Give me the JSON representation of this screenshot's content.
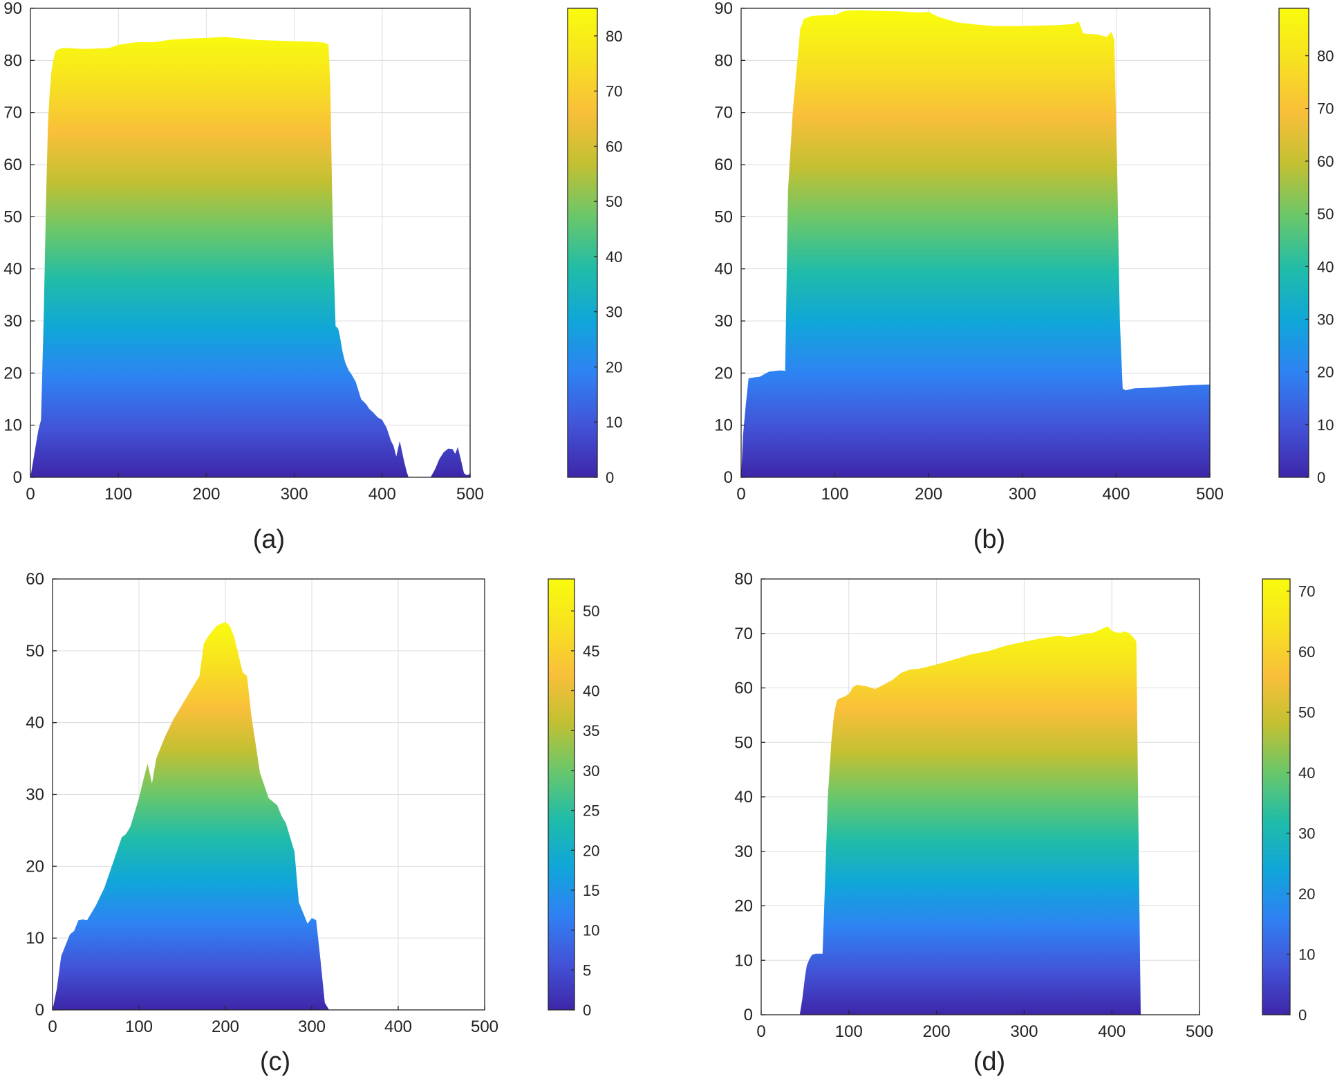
{
  "colors": {
    "parula_stops": [
      "#3e26a8",
      "#4254d8",
      "#2f82f3",
      "#10a6d9",
      "#20bca8",
      "#6ac76a",
      "#c2c032",
      "#f9bf3a",
      "#f7e121",
      "#f9fb0e"
    ],
    "grid": "#dcdcdc",
    "axis": "#262626"
  },
  "chart_data": [
    {
      "type": "area",
      "caption": "(a)",
      "fill": "vertical colormap gradient",
      "xlim": [
        0,
        500
      ],
      "ylim": [
        0,
        90
      ],
      "xticks": [
        0,
        100,
        200,
        300,
        400,
        500
      ],
      "yticks": [
        0,
        10,
        20,
        30,
        40,
        50,
        60,
        70,
        80,
        90
      ],
      "grid": true,
      "colorbar": {
        "range": [
          0,
          85
        ],
        "ticks": [
          0,
          10,
          20,
          30,
          40,
          50,
          60,
          70,
          80
        ]
      },
      "x": [
        0,
        3,
        6,
        9,
        12,
        15,
        18,
        20,
        22,
        24,
        26,
        28,
        30,
        35,
        40,
        60,
        80,
        90,
        100,
        120,
        140,
        160,
        180,
        200,
        220,
        240,
        260,
        280,
        300,
        320,
        335,
        339,
        341,
        343,
        345,
        347,
        350,
        352,
        355,
        358,
        362,
        366,
        370,
        376,
        382,
        385,
        390,
        395,
        400,
        405,
        410,
        413,
        416,
        420,
        425,
        428,
        430,
        433,
        436,
        440,
        455,
        460,
        465,
        470,
        475,
        480,
        483,
        486,
        490,
        493,
        496,
        500
      ],
      "y": [
        0,
        3,
        6,
        9,
        11,
        30,
        55,
        68,
        74,
        78,
        80,
        81.5,
        82,
        82.3,
        82.4,
        82.2,
        82.3,
        82.4,
        83,
        83.5,
        83.5,
        84,
        84.2,
        84.3,
        84.5,
        84.2,
        83.9,
        83.8,
        83.7,
        83.6,
        83.4,
        83.0,
        75,
        55,
        40,
        29,
        28.5,
        27,
        24,
        22,
        20.5,
        19.5,
        18.3,
        15,
        14,
        13.2,
        12.4,
        11.5,
        11,
        9.5,
        7,
        6,
        4,
        7,
        3,
        1,
        0,
        0,
        0,
        0,
        0,
        1.5,
        3.5,
        4.8,
        5.5,
        5.4,
        4.5,
        5.8,
        3,
        0.8,
        0.4,
        0.6
      ]
    },
    {
      "type": "area",
      "caption": "(b)",
      "fill": "vertical colormap gradient",
      "xlim": [
        0,
        500
      ],
      "ylim": [
        0,
        90
      ],
      "xticks": [
        0,
        100,
        200,
        300,
        400,
        500
      ],
      "yticks": [
        0,
        10,
        20,
        30,
        40,
        50,
        60,
        70,
        80,
        90
      ],
      "grid": true,
      "colorbar": {
        "range": [
          0,
          89
        ],
        "ticks": [
          0,
          10,
          20,
          30,
          40,
          50,
          60,
          70,
          80
        ]
      },
      "x": [
        0,
        2,
        5,
        8,
        15,
        20,
        25,
        30,
        40,
        44,
        47,
        50,
        55,
        60,
        63,
        67,
        70,
        75,
        80,
        100,
        110,
        120,
        130,
        150,
        170,
        190,
        200,
        210,
        230,
        250,
        270,
        300,
        320,
        340,
        355,
        360,
        365,
        370,
        380,
        390,
        395,
        398,
        401,
        404,
        407,
        410,
        420,
        440,
        460,
        480,
        500
      ],
      "y": [
        0,
        8,
        14,
        19,
        19.2,
        19.3,
        19.8,
        20.3,
        20.5,
        20.5,
        20.4,
        55,
        70,
        80,
        86,
        88,
        88.2,
        88.5,
        88.6,
        88.7,
        89.5,
        89.6,
        89.6,
        89.5,
        89.4,
        89.2,
        89.3,
        88.4,
        87.3,
        86.9,
        86.6,
        86.6,
        86.7,
        86.8,
        87.0,
        87.5,
        85.2,
        85.1,
        85.0,
        84.5,
        85.5,
        84.0,
        60,
        30,
        17,
        16.7,
        17.1,
        17.2,
        17.5,
        17.7,
        17.8
      ]
    },
    {
      "type": "area",
      "caption": "(c)",
      "fill": "vertical colormap gradient",
      "xlim": [
        0,
        500
      ],
      "ylim": [
        0,
        60
      ],
      "xticks": [
        0,
        100,
        200,
        300,
        400,
        500
      ],
      "yticks": [
        0,
        10,
        20,
        30,
        40,
        50,
        60
      ],
      "grid": true,
      "colorbar": {
        "range": [
          0,
          54
        ],
        "ticks": [
          0,
          5,
          10,
          15,
          20,
          25,
          30,
          35,
          40,
          45,
          50
        ]
      },
      "x": [
        0,
        5,
        10,
        15,
        20,
        25,
        30,
        35,
        40,
        50,
        60,
        70,
        80,
        85,
        90,
        95,
        100,
        105,
        110,
        115,
        120,
        130,
        140,
        150,
        160,
        170,
        175,
        180,
        190,
        200,
        205,
        210,
        220,
        225,
        230,
        235,
        240,
        250,
        260,
        265,
        270,
        280,
        285,
        290,
        295,
        300,
        305,
        310,
        315,
        320,
        330,
        500
      ],
      "y": [
        0,
        3,
        7.5,
        9,
        10.5,
        11,
        12.5,
        12.6,
        12.5,
        14.5,
        17,
        20.5,
        24,
        24.5,
        25.5,
        27.5,
        29.5,
        32,
        34.3,
        31.5,
        35,
        38,
        40.5,
        42.5,
        44.5,
        46.5,
        51,
        52,
        53.5,
        54,
        53.5,
        52,
        47,
        46.5,
        41,
        37,
        33,
        29.5,
        28.5,
        27,
        26,
        22,
        15,
        13.5,
        12,
        12.8,
        12.5,
        7,
        1,
        0,
        0,
        0
      ]
    },
    {
      "type": "area",
      "caption": "(d)",
      "fill": "vertical colormap gradient",
      "xlim": [
        0,
        500
      ],
      "ylim": [
        0,
        80
      ],
      "xticks": [
        0,
        100,
        200,
        300,
        400,
        500
      ],
      "yticks": [
        0,
        10,
        20,
        30,
        40,
        50,
        60,
        70,
        80
      ],
      "grid": true,
      "colorbar": {
        "range": [
          0,
          72
        ],
        "ticks": [
          0,
          10,
          20,
          30,
          40,
          50,
          60,
          70
        ]
      },
      "x": [
        0,
        44,
        47,
        50,
        52,
        55,
        58,
        62,
        70,
        73,
        76,
        80,
        83,
        86,
        88,
        90,
        95,
        100,
        105,
        110,
        115,
        120,
        130,
        140,
        150,
        160,
        170,
        180,
        200,
        220,
        240,
        260,
        280,
        300,
        320,
        340,
        350,
        360,
        380,
        395,
        400,
        405,
        410,
        415,
        420,
        425,
        428,
        430,
        433,
        500
      ],
      "y": [
        0,
        0,
        3,
        7,
        9,
        10.2,
        11,
        11.2,
        11.2,
        25,
        40,
        50,
        55,
        57.5,
        58,
        58.1,
        58.4,
        58.9,
        60.2,
        60.6,
        60.4,
        60.3,
        59.8,
        60.6,
        61.5,
        62.8,
        63.4,
        63.5,
        64.3,
        65.2,
        66.2,
        66.8,
        67.8,
        68.5,
        69.1,
        69.6,
        69.3,
        69.6,
        70.2,
        71.3,
        70.5,
        70.2,
        70.1,
        70.4,
        70.0,
        69.2,
        68.5,
        40,
        0,
        0
      ]
    }
  ]
}
